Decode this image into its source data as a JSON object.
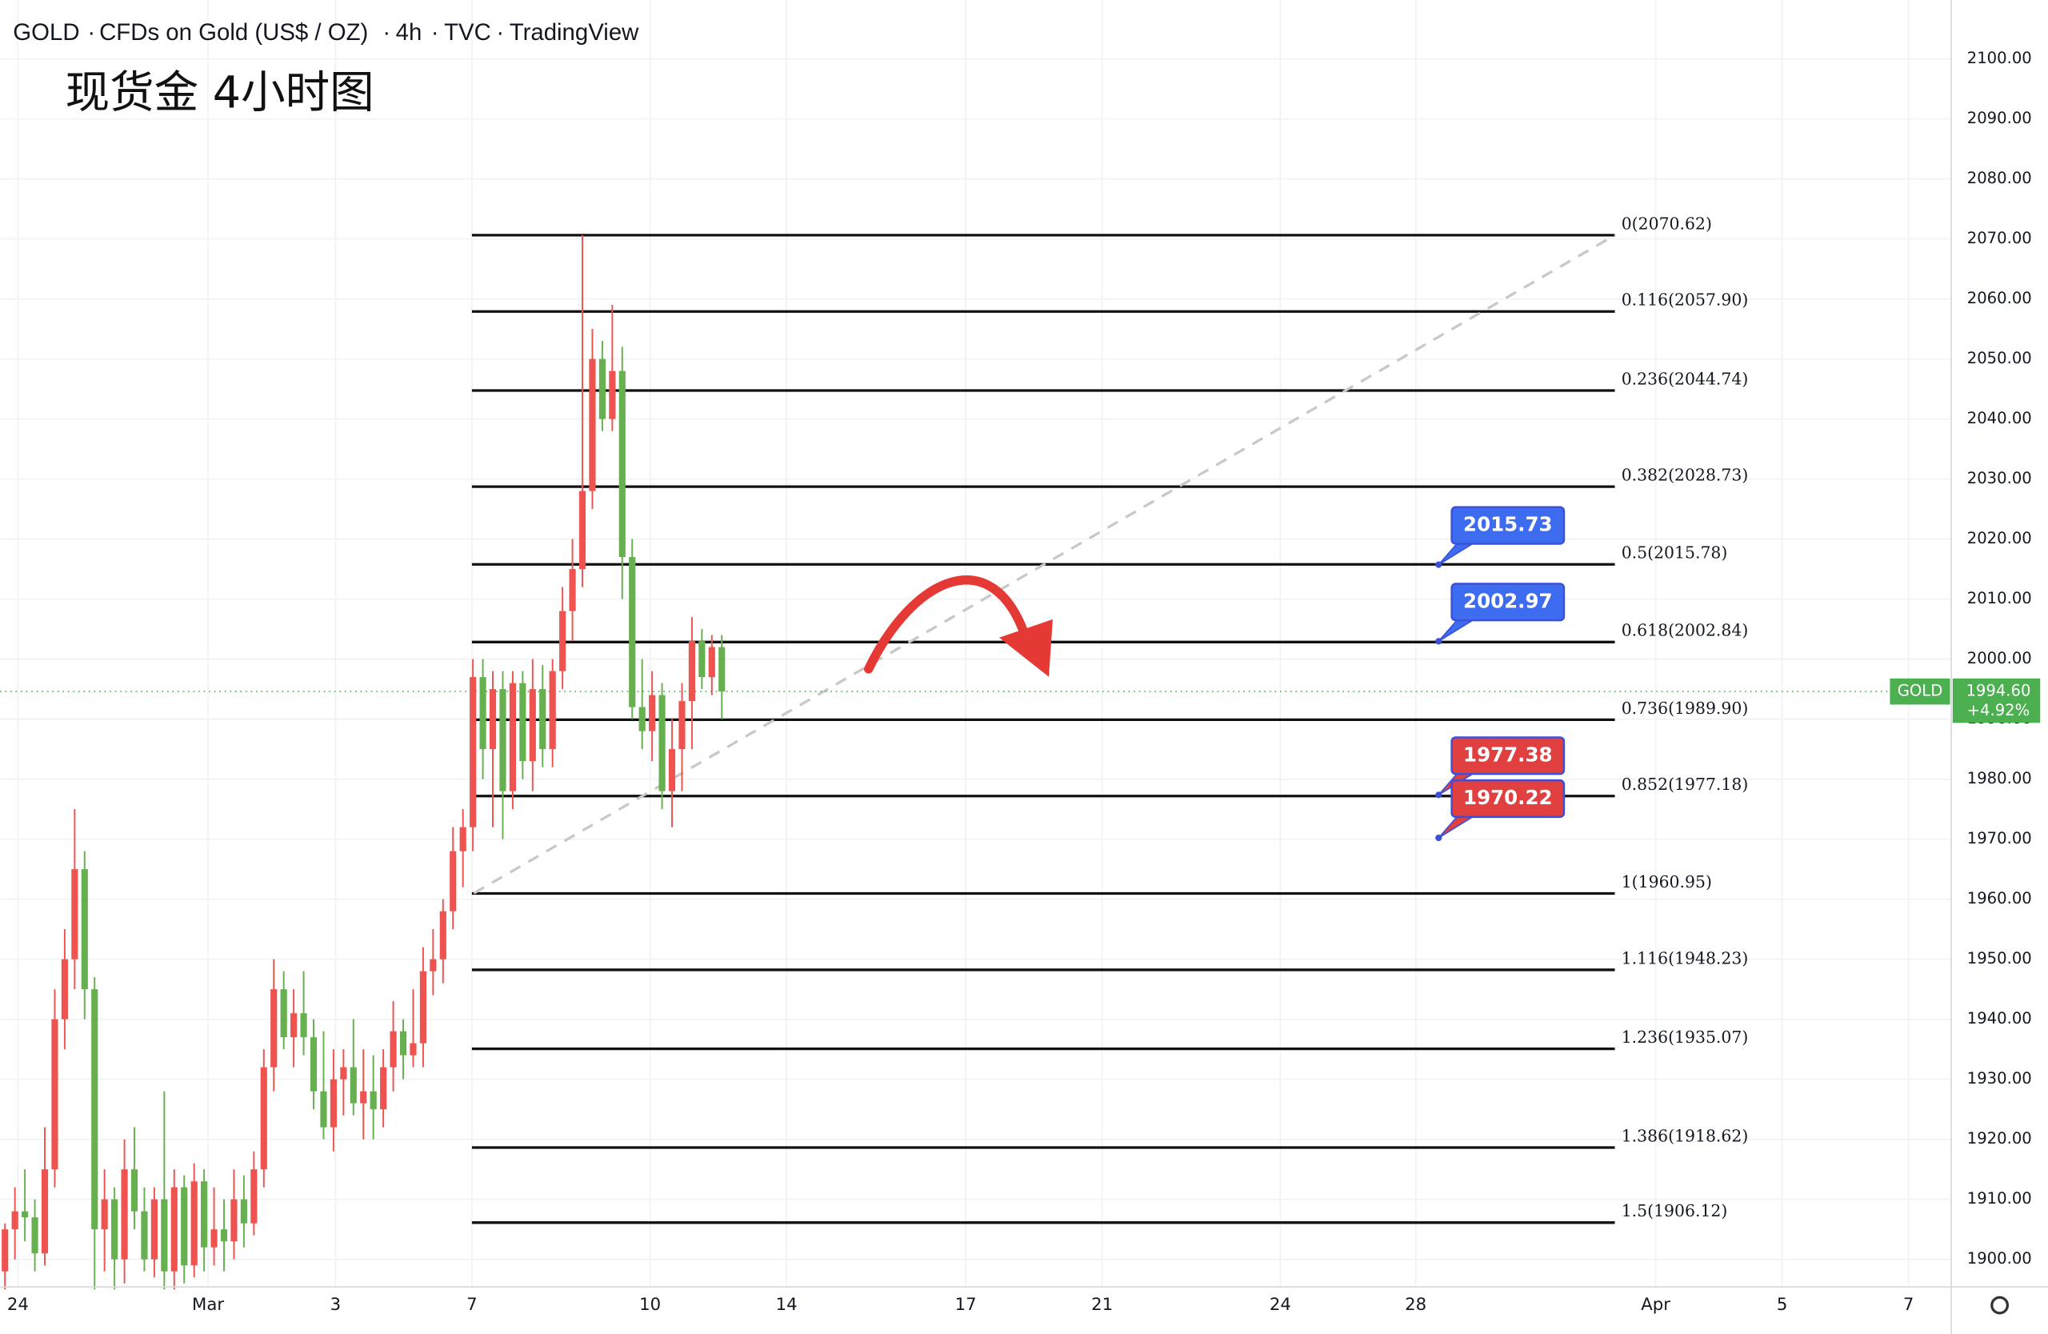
{
  "chart_data": {
    "type": "candlestick",
    "symbol": "GOLD",
    "title": "CFDs on Gold (US$ / OZ)",
    "interval": "4h",
    "source": "TVC",
    "platform": "TradingView",
    "subtitle": "现货金 4小时图",
    "up_color": "#ef5350",
    "down_color": "#66b04f",
    "grid": true,
    "ylim": [
      1895.4,
      2109.8
    ],
    "xlim": [
      0,
      196
    ],
    "yticks": [
      {
        "value": 1900,
        "label": "1900.00"
      },
      {
        "value": 1910,
        "label": "1910.00"
      },
      {
        "value": 1920,
        "label": "1920.00"
      },
      {
        "value": 1930,
        "label": "1930.00"
      },
      {
        "value": 1940,
        "label": "1940.00"
      },
      {
        "value": 1950,
        "label": "1950.00"
      },
      {
        "value": 1960,
        "label": "1960.00"
      },
      {
        "value": 1970,
        "label": "1970.00"
      },
      {
        "value": 1980,
        "label": "1980.00"
      },
      {
        "value": 1990,
        "label": "1990.00"
      },
      {
        "value": 2000,
        "label": "2000.00"
      },
      {
        "value": 2010,
        "label": "2010.00"
      },
      {
        "value": 2020,
        "label": "2020.00"
      },
      {
        "value": 2030,
        "label": "2030.00"
      },
      {
        "value": 2040,
        "label": "2040.00"
      },
      {
        "value": 2050,
        "label": "2050.00"
      },
      {
        "value": 2060,
        "label": "2060.00"
      },
      {
        "value": 2070,
        "label": "2070.00"
      },
      {
        "value": 2080,
        "label": "2080.00"
      },
      {
        "value": 2090,
        "label": "2090.00"
      },
      {
        "value": 2100,
        "label": "2100.00"
      }
    ],
    "xticks": [
      {
        "value": 1.8,
        "label": "24"
      },
      {
        "value": 20.9,
        "label": "Mar"
      },
      {
        "value": 33.7,
        "label": "3"
      },
      {
        "value": 47.4,
        "label": "7"
      },
      {
        "value": 65.3,
        "label": "10"
      },
      {
        "value": 79,
        "label": "14"
      },
      {
        "value": 97,
        "label": "17"
      },
      {
        "value": 110.7,
        "label": "21"
      },
      {
        "value": 128.6,
        "label": "24"
      },
      {
        "value": 142.2,
        "label": "28"
      },
      {
        "value": 166.3,
        "label": "Apr"
      },
      {
        "value": 179,
        "label": "5"
      },
      {
        "value": 191.7,
        "label": "7"
      }
    ],
    "candles": {
      "open": [
        1898,
        1905,
        1908,
        1907,
        1901,
        1915,
        1940,
        1950,
        1965,
        1945,
        1905,
        1910,
        1900,
        1915,
        1908,
        1900,
        1910,
        1898,
        1912,
        1899,
        1913,
        1902,
        1905,
        1903,
        1910,
        1906,
        1915,
        1932,
        1945,
        1937,
        1941,
        1937,
        1928,
        1922,
        1930,
        1932,
        1926,
        1928,
        1925,
        1932,
        1938,
        1934,
        1936,
        1948,
        1950,
        1958,
        1968,
        1972,
        1997,
        1985,
        1995,
        1978,
        1996,
        1983,
        1995,
        1985,
        1998,
        2008,
        2015,
        2028,
        2050,
        2040,
        2048,
        2017,
        1992,
        1988,
        1994,
        1978,
        1985,
        1993,
        2003,
        1997,
        2002
      ],
      "high": [
        1906,
        1912,
        1915,
        1910,
        1922,
        1945,
        1955,
        1975,
        1968,
        1947,
        1915,
        1912,
        1920,
        1922,
        1912,
        1912,
        1928,
        1915,
        1914,
        1916,
        1915,
        1912,
        1910,
        1915,
        1914,
        1918,
        1935,
        1950,
        1948,
        1945,
        1948,
        1940,
        1938,
        1935,
        1935,
        1940,
        1935,
        1934,
        1935,
        1943,
        1940,
        1945,
        1952,
        1955,
        1960,
        1972,
        1975,
        2000,
        2000,
        1998,
        1998,
        1998,
        1998,
        2000,
        1999,
        2000,
        2012,
        2020,
        2070.62,
        2055,
        2053,
        2059,
        2052,
        2020,
        2000,
        1998,
        1996,
        1990,
        1996,
        2007,
        2005,
        2004,
        2004
      ],
      "low": [
        1895,
        1900,
        1903,
        1898,
        1899,
        1912,
        1935,
        1945,
        1940,
        1895,
        1898,
        1895,
        1896,
        1905,
        1898,
        1897,
        1895,
        1895,
        1896,
        1897,
        1898,
        1899,
        1898,
        1900,
        1902,
        1904,
        1912,
        1928,
        1935,
        1932,
        1934,
        1925,
        1920,
        1918,
        1924,
        1924,
        1920,
        1920,
        1922,
        1928,
        1930,
        1932,
        1932,
        1944,
        1946,
        1955,
        1962,
        1968,
        1980,
        1972,
        1970,
        1975,
        1980,
        1978,
        1982,
        1982,
        1995,
        2003,
        2012,
        2025,
        2038,
        2038,
        2010,
        1990,
        1985,
        1983,
        1975,
        1972,
        1978,
        1985,
        1995,
        1994,
        1990
      ],
      "close": [
        1905,
        1908,
        1907,
        1901,
        1915,
        1940,
        1950,
        1965,
        1945,
        1905,
        1910,
        1900,
        1915,
        1908,
        1900,
        1910,
        1898,
        1912,
        1899,
        1913,
        1902,
        1905,
        1903,
        1910,
        1906,
        1915,
        1932,
        1945,
        1937,
        1941,
        1937,
        1928,
        1922,
        1930,
        1932,
        1926,
        1928,
        1925,
        1932,
        1938,
        1934,
        1936,
        1948,
        1950,
        1958,
        1968,
        1972,
        1997,
        1985,
        1995,
        1978,
        1996,
        1983,
        1995,
        1985,
        1998,
        2008,
        2015,
        2028,
        2050,
        2040,
        2048,
        2017,
        1992,
        1988,
        1994,
        1978,
        1985,
        1993,
        2003,
        1997,
        2002,
        1994.6
      ]
    },
    "fib_levels": [
      {
        "value": 2070.62,
        "label": "0(2070.62)"
      },
      {
        "value": 2057.9,
        "label": "0.116(2057.90)"
      },
      {
        "value": 2044.74,
        "label": "0.236(2044.74)"
      },
      {
        "value": 2028.73,
        "label": "0.382(2028.73)"
      },
      {
        "value": 2015.78,
        "label": "0.5(2015.78)"
      },
      {
        "value": 2002.84,
        "label": "0.618(2002.84)"
      },
      {
        "value": 1989.9,
        "label": "0.736(1989.90)"
      },
      {
        "value": 1977.18,
        "label": "0.852(1977.18)"
      },
      {
        "value": 1960.95,
        "label": "1(1960.95)"
      },
      {
        "value": 1948.23,
        "label": "1.116(1948.23)"
      },
      {
        "value": 1935.07,
        "label": "1.236(1935.07)"
      },
      {
        "value": 1918.62,
        "label": "1.386(1918.62)"
      },
      {
        "value": 1906.12,
        "label": "1.5(1906.12)"
      }
    ],
    "fib_x": [
      47.4,
      162.2
    ],
    "trend_line": {
      "x": [
        47.6,
        162.2
      ],
      "y": [
        1961.0,
        2070.62
      ]
    },
    "callouts": [
      {
        "value": 2015.73,
        "color": "#3d6cf0"
      },
      {
        "value": 2002.97,
        "color": "#3d6cf0"
      },
      {
        "value": 1977.38,
        "color": "#e04040"
      },
      {
        "value": 1970.22,
        "color": "#e04040"
      }
    ],
    "callout_x": 144.5,
    "last_price": {
      "value": 1994.6,
      "label": "1994.60"
    },
    "last_change": "+4.92%",
    "last_color": "#4caf50"
  }
}
